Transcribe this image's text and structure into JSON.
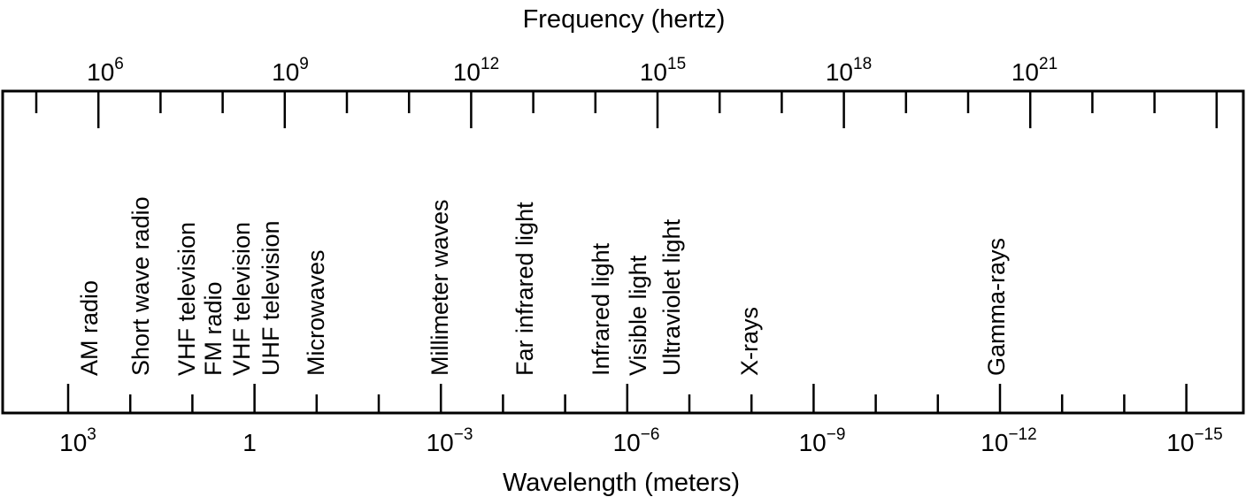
{
  "frequency_axis": {
    "title": "Frequency (hertz)",
    "tick_labels": [
      {
        "base": "10",
        "exp": "6"
      },
      {
        "base": "10",
        "exp": "9"
      },
      {
        "base": "10",
        "exp": "12"
      },
      {
        "base": "10",
        "exp": "15"
      },
      {
        "base": "10",
        "exp": "18"
      },
      {
        "base": "10",
        "exp": "21"
      }
    ]
  },
  "wavelength_axis": {
    "title": "Wavelength (meters)",
    "tick_labels": [
      {
        "base": "10",
        "exp": "3"
      },
      {
        "base": "1",
        "exp": ""
      },
      {
        "base": "10",
        "exp": "−3"
      },
      {
        "base": "10",
        "exp": "−6"
      },
      {
        "base": "10",
        "exp": "−9"
      },
      {
        "base": "10",
        "exp": "−12"
      },
      {
        "base": "10",
        "exp": "−15"
      }
    ]
  },
  "bands": [
    "AM radio",
    "Short wave radio",
    "VHF television",
    "FM radio",
    "VHF television",
    "UHF television",
    "Microwaves",
    "Millimeter waves",
    "Far infrared light",
    "Infrared light",
    "Visible light",
    "Ultraviolet light",
    "X-rays",
    "Gamma-rays"
  ]
}
